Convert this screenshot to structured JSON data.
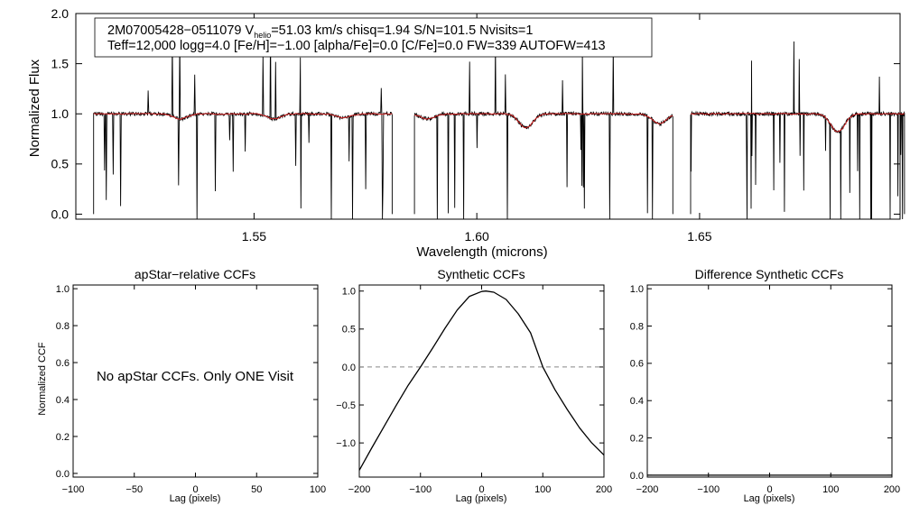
{
  "chart_data": [
    {
      "type": "line",
      "title": "",
      "xlabel": "Wavelength (microns)",
      "ylabel": "Normalized Flux",
      "xlim": [
        1.51,
        1.695
      ],
      "ylim": [
        -0.05,
        2.0
      ],
      "xticks": [
        1.55,
        1.6,
        1.65
      ],
      "xtick_labels": [
        "1.55",
        "1.60",
        "1.65"
      ],
      "yticks": [
        0.0,
        0.5,
        1.0,
        1.5,
        2.0
      ],
      "ytick_labels": [
        "0.0",
        "0.5",
        "1.0",
        "1.5",
        "2.0"
      ],
      "detector_chips": [
        [
          1.514,
          1.581
        ],
        [
          1.586,
          1.644
        ],
        [
          1.648,
          1.696
        ]
      ],
      "series": [
        {
          "name": "observed spectrum",
          "color": "#000000"
        },
        {
          "name": "synthetic model",
          "color": "#d02020"
        }
      ],
      "absorption_features": [
        {
          "x": 1.5335,
          "depth": 0.05
        },
        {
          "x": 1.5545,
          "depth": 0.05
        },
        {
          "x": 1.57,
          "depth": 0.04
        },
        {
          "x": 1.589,
          "depth": 0.05
        },
        {
          "x": 1.611,
          "depth": 0.14
        },
        {
          "x": 1.641,
          "depth": 0.1
        },
        {
          "x": 1.681,
          "depth": 0.18
        }
      ],
      "annotation": {
        "line1_prefix": "2M07005428−0511079  V",
        "line1_sub": "helio",
        "line1_suffix": "=51.03 km/s  chisq=1.94  S/N=101.5  Nvisits=1",
        "line2": "Teff=12,000 logg=4.0 [Fe/H]=−1.00 [alpha/Fe]=0.0 [C/Fe]=0.0 FW=339 AUTOFW=413"
      }
    },
    {
      "type": "line",
      "title": "apStar−relative CCFs",
      "xlabel": "Lag (pixels)",
      "ylabel": "Normalized CCF",
      "xlim": [
        -100,
        100
      ],
      "ylim": [
        -0.02,
        1.02
      ],
      "xticks": [
        -100,
        -50,
        0,
        50,
        100
      ],
      "xtick_labels": [
        "−100",
        "−50",
        "0",
        "50",
        "100"
      ],
      "yticks": [
        0.0,
        0.2,
        0.4,
        0.6,
        0.8,
        1.0
      ],
      "ytick_labels": [
        "0.0",
        "0.2",
        "0.4",
        "0.6",
        "0.8",
        "1.0"
      ],
      "message": "No apStar CCFs.  Only ONE Visit",
      "series": []
    },
    {
      "type": "line",
      "title": "Synthetic CCFs",
      "xlabel": "Lag (pixels)",
      "ylabel": "",
      "xlim": [
        -200,
        200
      ],
      "ylim": [
        -1.45,
        1.08
      ],
      "xticks": [
        -200,
        -100,
        0,
        100,
        200
      ],
      "xtick_labels": [
        "−200",
        "−100",
        "0",
        "100",
        "200"
      ],
      "yticks": [
        -1.0,
        -0.5,
        0.0,
        0.5,
        1.0
      ],
      "ytick_labels": [
        "−1.0",
        "−0.5",
        "0.0",
        "0.5",
        "1.0"
      ],
      "reference_line_y": 0.0,
      "series": [
        {
          "name": "synthetic CCF",
          "x": [
            -200,
            -180,
            -160,
            -140,
            -120,
            -100,
            -80,
            -60,
            -40,
            -20,
            0,
            7,
            20,
            40,
            60,
            80,
            100,
            120,
            140,
            160,
            180,
            200
          ],
          "y": [
            -1.36,
            -1.07,
            -0.79,
            -0.51,
            -0.24,
            0.0,
            0.25,
            0.51,
            0.75,
            0.93,
            0.995,
            1.0,
            0.985,
            0.89,
            0.7,
            0.45,
            0.0,
            -0.3,
            -0.56,
            -0.8,
            -1.0,
            -1.16
          ]
        }
      ]
    },
    {
      "type": "line",
      "title": "Difference Synthetic CCFs",
      "xlabel": "Lag (pixels)",
      "ylabel": "",
      "xlim": [
        -200,
        200
      ],
      "ylim": [
        -0.01,
        1.02
      ],
      "xticks": [
        -200,
        -100,
        0,
        100,
        200
      ],
      "xtick_labels": [
        "−200",
        "−100",
        "0",
        "100",
        "200"
      ],
      "yticks": [
        0.0,
        0.2,
        0.4,
        0.6,
        0.8,
        1.0
      ],
      "ytick_labels": [
        "0.0",
        "0.2",
        "0.4",
        "0.6",
        "0.8",
        "1.0"
      ],
      "series": [
        {
          "name": "difference CCF",
          "x": [
            -200,
            200
          ],
          "y": [
            0.0,
            0.0
          ]
        }
      ]
    }
  ]
}
